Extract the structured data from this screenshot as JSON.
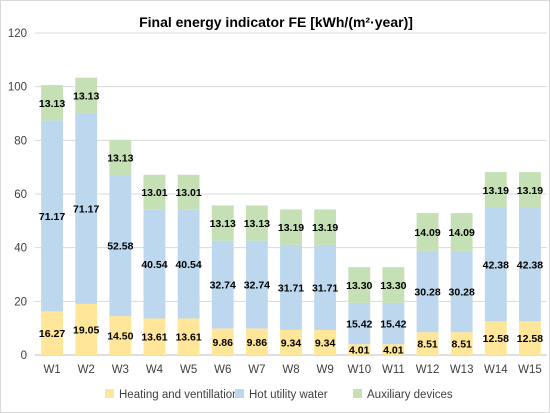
{
  "chart_data": {
    "type": "bar",
    "stacked": true,
    "title": "Final energy indicator FE [kWh/(m²·year)]",
    "xlabel": "",
    "ylabel": "",
    "ylim": [
      0,
      120
    ],
    "yticks": [
      "0",
      "20",
      "40",
      "60",
      "80",
      "100",
      "120"
    ],
    "grid": true,
    "legend_position": "bottom",
    "categories": [
      "W1",
      "W2",
      "W3",
      "W4",
      "W5",
      "W6",
      "W7",
      "W8",
      "W9",
      "W10",
      "W11",
      "W12",
      "W13",
      "W14",
      "W15"
    ],
    "series": [
      {
        "name": "Heating and ventillation",
        "color": "#ffe699",
        "values": [
          16.27,
          19.05,
          14.5,
          13.61,
          13.61,
          9.86,
          9.86,
          9.34,
          9.34,
          4.01,
          4.01,
          8.51,
          8.51,
          12.58,
          12.58
        ],
        "labels": [
          "16.27",
          "19.05",
          "14.50",
          "13.61",
          "13.61",
          "9.86",
          "9.86",
          "9.34",
          "9.34",
          "4.01",
          "4.01",
          "8.51",
          "8.51",
          "12.58",
          "12.58"
        ]
      },
      {
        "name": "Hot utility water",
        "color": "#bdd7ee",
        "values": [
          71.17,
          71.17,
          52.58,
          40.54,
          40.54,
          32.74,
          32.74,
          31.71,
          31.71,
          15.42,
          15.42,
          30.28,
          30.28,
          42.38,
          42.38
        ],
        "labels": [
          "71.17",
          "71.17",
          "52.58",
          "40.54",
          "40.54",
          "32.74",
          "32.74",
          "31.71",
          "31.71",
          "15.42",
          "15.42",
          "30.28",
          "30.28",
          "42.38",
          "42.38"
        ]
      },
      {
        "name": "Auxiliary devices",
        "color": "#c5e0b4",
        "values": [
          13.13,
          13.13,
          13.13,
          13.01,
          13.01,
          13.13,
          13.13,
          13.19,
          13.19,
          13.3,
          13.3,
          14.09,
          14.09,
          13.19,
          13.19
        ],
        "labels": [
          "13.13",
          "13.13",
          "13.13",
          "13.01",
          "13.01",
          "13.13",
          "13.13",
          "13.19",
          "13.19",
          "13.30",
          "13.30",
          "14.09",
          "14.09",
          "13.19",
          "13.19"
        ]
      }
    ]
  }
}
